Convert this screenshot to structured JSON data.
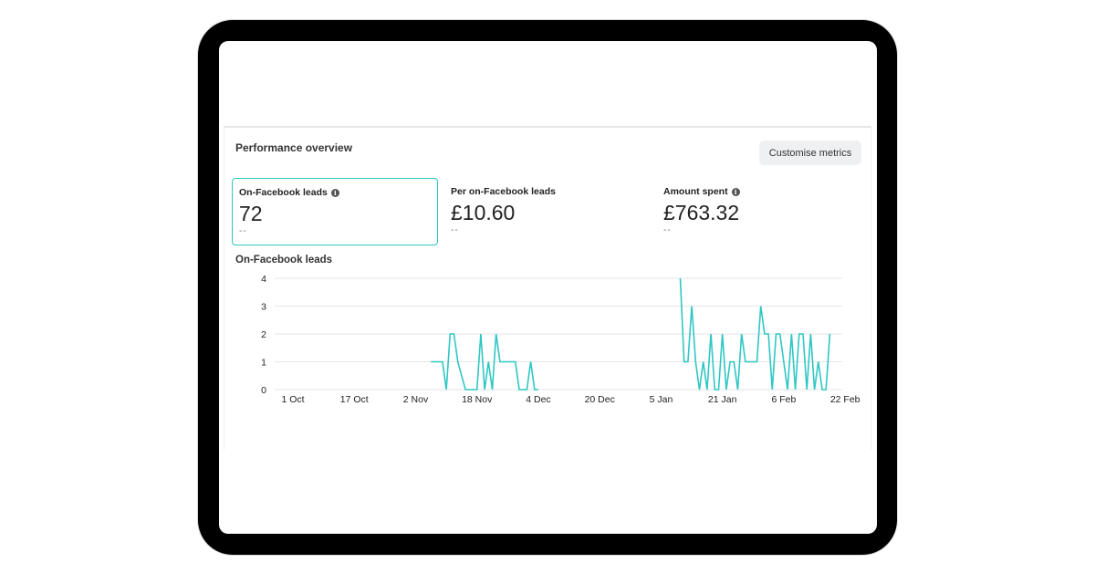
{
  "panel": {
    "title": "Performance overview",
    "customise_button": "Customise metrics"
  },
  "metrics": [
    {
      "label": "On-Facebook leads",
      "value": "72",
      "delta": "--",
      "info_icon": true
    },
    {
      "label": "Per on-Facebook leads",
      "value": "£10.60",
      "delta": "--",
      "info_icon": false
    },
    {
      "label": "Amount spent",
      "value": "£763.32",
      "delta": "--",
      "info_icon": true
    }
  ],
  "chart_title": "On-Facebook leads",
  "colors": {
    "line": "#2ec7c4",
    "selected_border": "#2ec7c4",
    "grid": "#e6e6e6"
  },
  "chart_data": {
    "type": "line",
    "title": "On-Facebook leads",
    "xlabel": "",
    "ylabel": "",
    "x_tick_labels": [
      "1 Oct",
      "17 Oct",
      "2 Nov",
      "18 Nov",
      "4 Dec",
      "20 Dec",
      "5 Jan",
      "21 Jan",
      "6 Feb",
      "22 Feb"
    ],
    "x_tick_day_offsets": [
      0,
      16,
      32,
      48,
      64,
      80,
      96,
      112,
      128,
      144
    ],
    "y_ticks": [
      0,
      1,
      2,
      3,
      4
    ],
    "ylim": [
      0,
      4
    ],
    "grid": true,
    "series": [
      {
        "points": [
          [
            36,
            1
          ],
          [
            37,
            1
          ],
          [
            38,
            1
          ],
          [
            39,
            1
          ],
          [
            40,
            0
          ],
          [
            41,
            2
          ],
          [
            42,
            2
          ],
          [
            43,
            1
          ],
          [
            44,
            0.5
          ],
          [
            45,
            0
          ],
          [
            46,
            0
          ],
          [
            47,
            0
          ],
          [
            48,
            0
          ],
          [
            49,
            2
          ],
          [
            50,
            0
          ],
          [
            51,
            1
          ],
          [
            52,
            0
          ],
          [
            53,
            2
          ],
          [
            54,
            1
          ],
          [
            55,
            1
          ],
          [
            56,
            1
          ],
          [
            57,
            1
          ],
          [
            58,
            1
          ],
          [
            59,
            0
          ],
          [
            60,
            0
          ],
          [
            61,
            0
          ],
          [
            62,
            1
          ],
          [
            63,
            0
          ],
          [
            64,
            0
          ],
          [
            null,
            null
          ],
          [
            101,
            4
          ],
          [
            102,
            1
          ],
          [
            103,
            1
          ],
          [
            104,
            3
          ],
          [
            105,
            1
          ],
          [
            106,
            0
          ],
          [
            107,
            1
          ],
          [
            108,
            0
          ],
          [
            109,
            2
          ],
          [
            110,
            0
          ],
          [
            111,
            0
          ],
          [
            112,
            2
          ],
          [
            113,
            0
          ],
          [
            114,
            1
          ],
          [
            115,
            1
          ],
          [
            116,
            0
          ],
          [
            117,
            2
          ],
          [
            118,
            1
          ],
          [
            119,
            1
          ],
          [
            120,
            1
          ],
          [
            121,
            1
          ],
          [
            122,
            3
          ],
          [
            123,
            2
          ],
          [
            124,
            2
          ],
          [
            125,
            0
          ],
          [
            126,
            2
          ],
          [
            127,
            2
          ],
          [
            128,
            1
          ],
          [
            129,
            0
          ],
          [
            130,
            2
          ],
          [
            131,
            0
          ],
          [
            132,
            2
          ],
          [
            133,
            2
          ],
          [
            134,
            0
          ],
          [
            135,
            2
          ],
          [
            136,
            0
          ],
          [
            137,
            1
          ],
          [
            138,
            0
          ],
          [
            139,
            0
          ],
          [
            140,
            2
          ]
        ]
      }
    ]
  }
}
